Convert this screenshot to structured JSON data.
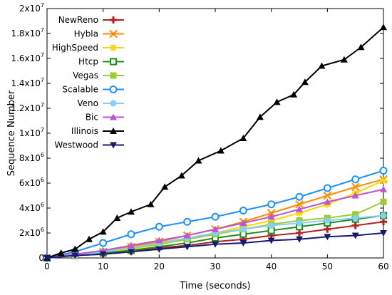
{
  "chart_data": {
    "type": "line",
    "xlabel": "Time (seconds)",
    "ylabel": "Sequence Number",
    "xlim": [
      0,
      60
    ],
    "ylim": [
      0,
      20000000
    ],
    "x_ticks": [
      0,
      10,
      20,
      30,
      40,
      50,
      60
    ],
    "y_ticks": [
      {
        "value": 0,
        "base": "0",
        "exp": ""
      },
      {
        "value": 2000000,
        "base": "2x10",
        "exp": "6"
      },
      {
        "value": 4000000,
        "base": "4x10",
        "exp": "6"
      },
      {
        "value": 6000000,
        "base": "6x10",
        "exp": "6"
      },
      {
        "value": 8000000,
        "base": "8x10",
        "exp": "6"
      },
      {
        "value": 10000000,
        "base": "1x10",
        "exp": "7"
      },
      {
        "value": 12000000,
        "base": "1.2x10",
        "exp": "7"
      },
      {
        "value": 14000000,
        "base": "1.4x10",
        "exp": "7"
      },
      {
        "value": 16000000,
        "base": "1.6x10",
        "exp": "7"
      },
      {
        "value": 18000000,
        "base": "1.8x10",
        "exp": "7"
      },
      {
        "value": 20000000,
        "base": "2x10",
        "exp": "7"
      }
    ],
    "grid": false,
    "legend_position": "top-left",
    "series": [
      {
        "name": "NewReno",
        "color": "#b22222",
        "marker": "plus",
        "x": [
          0,
          5,
          10,
          15,
          20,
          25,
          30,
          35,
          40,
          45,
          50,
          55,
          60
        ],
        "y": [
          0,
          200000,
          300000,
          500000,
          800000,
          1000000,
          1300000,
          1500000,
          1800000,
          2000000,
          2300000,
          2600000,
          2900000
        ]
      },
      {
        "name": "Hybla",
        "color": "#ff8c00",
        "marker": "x",
        "x": [
          0,
          5,
          10,
          15,
          20,
          25,
          30,
          35,
          40,
          45,
          50,
          55,
          60
        ],
        "y": [
          0,
          300000,
          500000,
          900000,
          1300000,
          1800000,
          2300000,
          2900000,
          3600000,
          4300000,
          5000000,
          5700000,
          6300000
        ]
      },
      {
        "name": "HighSpeed",
        "color": "#ffd700",
        "marker": "star",
        "x": [
          0,
          5,
          10,
          15,
          20,
          25,
          30,
          35,
          40,
          45,
          50,
          55,
          60
        ],
        "y": [
          0,
          300000,
          400000,
          700000,
          1100000,
          1500000,
          2000000,
          2500000,
          3000000,
          3600000,
          4300000,
          5200000,
          6200000
        ]
      },
      {
        "name": "Htcp",
        "color": "#228b22",
        "marker": "square",
        "x": [
          0,
          5,
          10,
          15,
          20,
          25,
          30,
          35,
          40,
          45,
          50,
          55,
          60
        ],
        "y": [
          0,
          200000,
          400000,
          600000,
          900000,
          1200000,
          1600000,
          1900000,
          2200000,
          2500000,
          2800000,
          3100000,
          3400000
        ]
      },
      {
        "name": "Vegas",
        "color": "#9acd32",
        "marker": "filled-square",
        "x": [
          0,
          5,
          10,
          15,
          20,
          25,
          30,
          35,
          40,
          45,
          50,
          55,
          60
        ],
        "y": [
          0,
          200000,
          500000,
          800000,
          1100000,
          1500000,
          1900000,
          2300000,
          2700000,
          3000000,
          3200000,
          3500000,
          4500000
        ]
      },
      {
        "name": "Scalable",
        "color": "#1e90ff",
        "marker": "circle",
        "x": [
          0,
          5,
          10,
          15,
          20,
          25,
          30,
          35,
          40,
          45,
          50,
          55,
          60
        ],
        "y": [
          0,
          500000,
          1200000,
          1900000,
          2500000,
          2900000,
          3300000,
          3800000,
          4300000,
          4900000,
          5600000,
          6300000,
          7000000
        ]
      },
      {
        "name": "Veno",
        "color": "#87cefa",
        "marker": "filled-circle",
        "x": [
          0,
          5,
          10,
          15,
          20,
          25,
          30,
          35,
          40,
          45,
          50,
          55,
          60
        ],
        "y": [
          0,
          200000,
          500000,
          800000,
          1200000,
          1600000,
          2000000,
          2300000,
          2600000,
          2800000,
          3000000,
          3200000,
          3400000
        ]
      },
      {
        "name": "Bic",
        "color": "#ba55d3",
        "marker": "triangle",
        "x": [
          0,
          5,
          10,
          15,
          20,
          25,
          30,
          35,
          40,
          45,
          50,
          55,
          60
        ],
        "y": [
          0,
          300000,
          600000,
          1000000,
          1400000,
          1800000,
          2300000,
          2800000,
          3300000,
          3900000,
          4500000,
          5000000,
          5500000
        ]
      },
      {
        "name": "Illinois",
        "color": "#000000",
        "marker": "filled-triangle",
        "x": [
          0,
          2.5,
          5,
          7.5,
          10,
          12.5,
          15,
          18.5,
          21,
          24,
          27,
          31,
          35,
          38,
          41,
          44,
          46,
          49,
          53,
          56,
          60
        ],
        "y": [
          0,
          400000,
          700000,
          1500000,
          2100000,
          3200000,
          3700000,
          4300000,
          5700000,
          6600000,
          7800000,
          8600000,
          9600000,
          11300000,
          12500000,
          13100000,
          14100000,
          15400000,
          15900000,
          16900000,
          18500000
        ]
      },
      {
        "name": "Westwood",
        "color": "#191970",
        "marker": "filled-down-triangle",
        "x": [
          0,
          5,
          10,
          15,
          20,
          25,
          30,
          35,
          40,
          45,
          50,
          55,
          60
        ],
        "y": [
          0,
          200000,
          300000,
          500000,
          700000,
          900000,
          1100000,
          1200000,
          1400000,
          1500000,
          1700000,
          1800000,
          2000000
        ]
      }
    ]
  }
}
